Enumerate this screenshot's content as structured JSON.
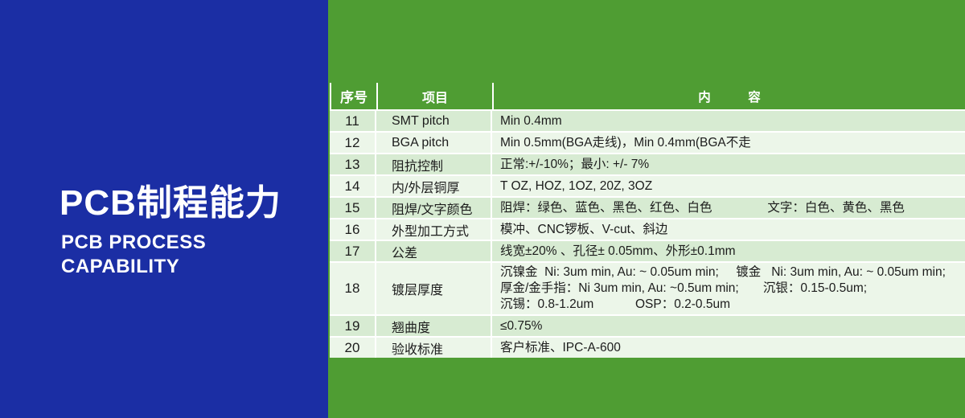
{
  "colors": {
    "panel_blue": "#1b2ea4",
    "table_green": "#4f9d33",
    "row_light": "#d7ebd2",
    "row_lighter": "#ecf6e9",
    "header_text": "#ffffff",
    "body_text": "#1c1c1c",
    "divider_white": "#ffffff"
  },
  "left_panel": {
    "title": "PCB制程能力",
    "subtitle": "PCB PROCESS\nCAPABILITY"
  },
  "table": {
    "header": {
      "no": "序号",
      "item": "项目",
      "content": "内　　　容"
    },
    "rows": [
      {
        "no": "11",
        "item": "SMT pitch",
        "content": "Min 0.4mm"
      },
      {
        "no": "12",
        "item": "BGA pitch",
        "content": "Min 0.5mm(BGA走线)，Min 0.4mm(BGA不走"
      },
      {
        "no": "13",
        "item": "阻抗控制",
        "content": "正常:+/-10%；最小: +/- 7%"
      },
      {
        "no": "14",
        "item": "内/外层铜厚",
        "content": "T OZ, HOZ, 1OZ, 20Z, 3OZ"
      },
      {
        "no": "15",
        "item": "阻焊/文字颜色",
        "content": "阻焊：绿色、蓝色、黑色、红色、白色                文字：白色、黄色、黑色"
      },
      {
        "no": "16",
        "item": "外型加工方式",
        "content": "模冲、CNC锣板、V-cut、斜边"
      },
      {
        "no": "17",
        "item": "公差",
        "content": "线宽±20% 、孔径± 0.05mm、外形±0.1mm"
      },
      {
        "no": "18",
        "item": "镀层厚度",
        "content": "沉镍金  Ni: 3um min, Au: ~ 0.05um min;     镀金   Ni: 3um min, Au: ~ 0.05um min;\n厚金/金手指：Ni 3um min, Au: ~0.5um min;       沉银：0.15-0.5um;\n沉锡：0.8-1.2um            OSP：0.2-0.5um"
      },
      {
        "no": "19",
        "item": "翘曲度",
        "content": "≤0.75%"
      },
      {
        "no": "20",
        "item": "验收标准",
        "content": "客户标准、IPC-A-600"
      }
    ]
  }
}
